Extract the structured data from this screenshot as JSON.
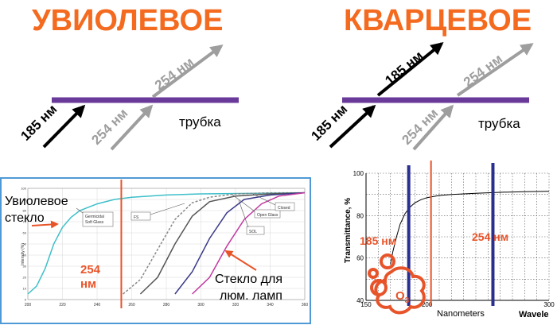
{
  "titles": {
    "left": "УВИОЛЕВОЕ",
    "right": "КВАРЦЕВОЕ"
  },
  "colors": {
    "title": "#f46a1f",
    "tube": "#6a3a9a",
    "uv185": "#000000",
    "uv254": "#9e9e9e",
    "marker_red": "#e8542a",
    "marker_blue": "#2a2f8f",
    "frame": "#4f9ad6"
  },
  "left_diagram": {
    "label_185": "185 нм",
    "label_254_in": "254 нм",
    "label_254_out": "254 нм",
    "tube_label": "трубка"
  },
  "right_diagram": {
    "label_185_in": "185 нм",
    "label_185_out": "185 нм",
    "label_254_in": "254 нм",
    "label_254_out": "254 нм",
    "tube_label": "трубка"
  },
  "left_chart": {
    "annotation_uviol": "Увиолевое стекло",
    "annotation_254": "254 нм",
    "annotation_lamp": "Стекло для люм. ламп",
    "ylabel": "Intensity (%)",
    "boxes": [
      "Germicidal Soft Glass",
      "FS",
      "Open Glass",
      "SOL",
      "Closed"
    ],
    "xticks": [
      "200",
      "220",
      "240",
      "260",
      "280",
      "300",
      "320",
      "340",
      "360"
    ],
    "yticks": [
      "0",
      "10",
      "20",
      "30",
      "40",
      "50",
      "60",
      "70",
      "80",
      "90",
      "100"
    ]
  },
  "right_chart": {
    "ylabel": "Transmittance, %",
    "xlabel": "Nanometers",
    "xticks": [
      "150",
      "200",
      "300"
    ],
    "yticks": [
      "40",
      "60",
      "80",
      "100"
    ],
    "label_185": "185 нм",
    "label_254": "254 нм",
    "ozone": "O",
    "ozone_sub": "3",
    "wavelength_cut": "Wavele"
  },
  "chart_data": [
    {
      "type": "line",
      "ylabel": "Intensity (%)",
      "xlim": [
        200,
        360
      ],
      "ylim": [
        0,
        100
      ],
      "series": [
        {
          "name": "Germicidal Soft Glass",
          "x": [
            200,
            205,
            210,
            215,
            220,
            225,
            230,
            240,
            250,
            260,
            280,
            300,
            360
          ],
          "y": [
            5,
            12,
            28,
            50,
            65,
            74,
            80,
            86,
            90,
            92,
            94,
            95,
            96
          ]
        },
        {
          "x": [
            255,
            265,
            275,
            285,
            295,
            305,
            320,
            340,
            360
          ],
          "y": [
            5,
            18,
            45,
            72,
            87,
            92,
            95,
            96,
            96
          ]
        },
        {
          "x": [
            265,
            275,
            285,
            295,
            305,
            320,
            340,
            360
          ],
          "y": [
            5,
            20,
            50,
            75,
            88,
            93,
            95,
            96
          ]
        },
        {
          "x": [
            285,
            295,
            305,
            315,
            325,
            340,
            360
          ],
          "y": [
            5,
            25,
            55,
            78,
            90,
            94,
            96
          ]
        },
        {
          "x": [
            295,
            305,
            315,
            325,
            335,
            345,
            360
          ],
          "y": [
            5,
            20,
            48,
            72,
            86,
            93,
            96
          ]
        }
      ],
      "markers": [
        {
          "x": 254
        }
      ]
    },
    {
      "type": "line",
      "ylabel": "Transmittance, %",
      "xlabel": "Nanometers",
      "xlim": [
        150,
        300
      ],
      "ylim": [
        40,
        100
      ],
      "series": [
        {
          "x": [
            170,
            172,
            175,
            178,
            182,
            186,
            190,
            195,
            200,
            210,
            220,
            240,
            260,
            280,
            300
          ],
          "y": [
            57,
            63,
            70,
            76,
            81,
            84,
            86,
            87.5,
            88.5,
            89.5,
            90,
            90.5,
            91,
            91.3,
            91.5
          ]
        }
      ],
      "markers": [
        {
          "x": 185
        },
        {
          "x": 254
        }
      ]
    }
  ]
}
